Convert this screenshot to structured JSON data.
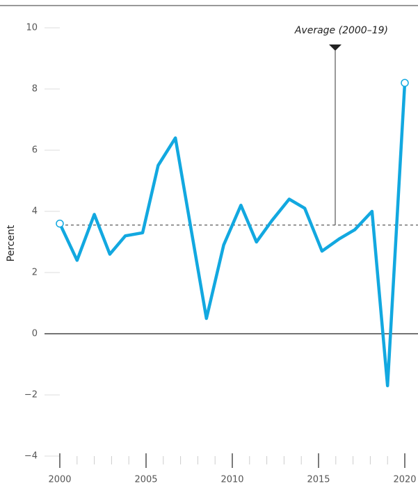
{
  "chart_data": {
    "type": "line",
    "y_label": "Percent",
    "annotation": "Average (2000–19)",
    "average": 3.55,
    "x": [
      2000,
      2001.0,
      2002.0,
      2002.9,
      2003.8,
      2004.8,
      2005.7,
      2006.7,
      2008.5,
      2009.5,
      2010.5,
      2011.4,
      2012.3,
      2013.3,
      2014.2,
      2015.2,
      2016.2,
      2017.1,
      2018.1,
      2019.0,
      2020.0
    ],
    "series": [
      {
        "color": "#12a8e0",
        "values": [
          3.6,
          2.4,
          3.9,
          2.6,
          3.2,
          3.3,
          5.5,
          6.4,
          0.5,
          2.9,
          4.2,
          3.0,
          3.7,
          4.4,
          4.1,
          2.7,
          3.1,
          3.4,
          4.0,
          -1.7,
          8.2
        ]
      }
    ],
    "xlim": [
      2000,
      2020
    ],
    "xticks": [
      2000,
      2005,
      2010,
      2015,
      2020
    ],
    "xminor_ticks": [
      2001,
      2002,
      2003,
      2004,
      2006,
      2007,
      2008,
      2009,
      2011,
      2012,
      2013,
      2014,
      2016,
      2017,
      2018,
      2019
    ],
    "ylim": [
      -4,
      10
    ],
    "yticks": [
      {
        "value": -4,
        "label": "−4"
      },
      {
        "value": -2,
        "label": "−2"
      },
      0,
      2,
      4,
      6,
      8,
      10
    ]
  }
}
